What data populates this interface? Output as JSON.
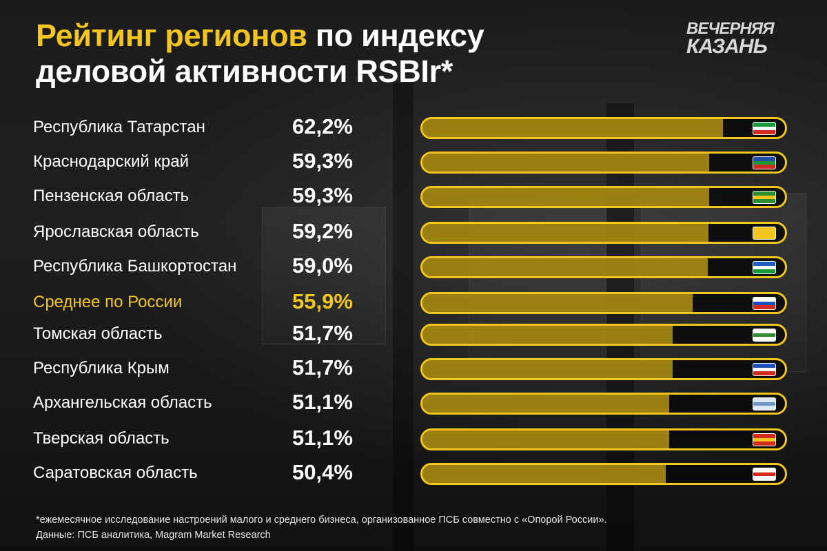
{
  "title": {
    "highlight": "Рейтинг регионов",
    "rest_line1": " по индексу",
    "line2": "деловой активности RSBIr*"
  },
  "logo": {
    "line1": "Вечерняя",
    "line2": "Казань"
  },
  "chart_data": {
    "type": "bar",
    "orientation": "horizontal",
    "title": "Рейтинг регионов по индексу деловой активности RSBIr*",
    "unit": "%",
    "xlim": [
      0,
      75
    ],
    "categories": [
      "Республика Татарстан",
      "Краснодарский край",
      "Пензенская область",
      "Ярославская область",
      "Республика Башкортостан",
      "Среднее по России",
      "Томская область",
      "Республика Крым",
      "Архангельская область",
      "Тверская область",
      "Саратовская область"
    ],
    "values": [
      62.2,
      59.3,
      59.3,
      59.2,
      59.0,
      55.9,
      51.7,
      51.7,
      51.1,
      51.1,
      50.4
    ],
    "value_labels": [
      "62,2%",
      "59,3%",
      "59,3%",
      "59,2%",
      "59,0%",
      "55,9%",
      "51,7%",
      "51,7%",
      "51,1%",
      "51,1%",
      "50,4%"
    ],
    "highlighted_category": "Среднее по России",
    "flags": [
      {
        "icon": "tatarstan-flag-icon",
        "stripes": [
          "#1a9a3a",
          "#ffffff",
          "#d52b1e"
        ]
      },
      {
        "icon": "krasnodar-flag-icon",
        "stripes": [
          "#1f4fa8",
          "#1a9a3a",
          "#d52b1e"
        ]
      },
      {
        "icon": "penza-flag-icon",
        "stripes": [
          "#2e8b2e",
          "#f2c61f",
          "#2e8b2e"
        ]
      },
      {
        "icon": "yaroslavl-flag-icon",
        "stripes": [
          "#f2c61f",
          "#f2c61f",
          "#f2c61f"
        ]
      },
      {
        "icon": "bashkortostan-flag-icon",
        "stripes": [
          "#1f5fbf",
          "#ffffff",
          "#1a9a3a"
        ]
      },
      {
        "icon": "russia-flag-icon",
        "stripes": [
          "#ffffff",
          "#1f4fbf",
          "#d52b1e"
        ]
      },
      {
        "icon": "tomsk-flag-icon",
        "stripes": [
          "#ffffff",
          "#2e8b2e",
          "#ffffff"
        ]
      },
      {
        "icon": "crimea-flag-icon",
        "stripes": [
          "#1f4fbf",
          "#ffffff",
          "#d52b1e"
        ]
      },
      {
        "icon": "arkhangelsk-flag-icon",
        "stripes": [
          "#dce8f5",
          "#6f95c9",
          "#dce8f5"
        ]
      },
      {
        "icon": "tver-flag-icon",
        "stripes": [
          "#d52b1e",
          "#f2c61f",
          "#d52b1e"
        ]
      },
      {
        "icon": "saratov-flag-icon",
        "stripes": [
          "#ffffff",
          "#d52b1e",
          "#ffffff"
        ]
      }
    ]
  },
  "colors": {
    "accent": "#F2C61F",
    "bar_fill": "#D2AC12",
    "track": "#0A0A0A",
    "text": "#FFFFFF"
  },
  "footnote": {
    "line1": "*ежемесячное исследование настроений малого и среднего бизнеса, организованное ПСБ совместно с «Опорой России».",
    "line2": "Данные: ПСБ аналитика, Magram Market Research"
  }
}
